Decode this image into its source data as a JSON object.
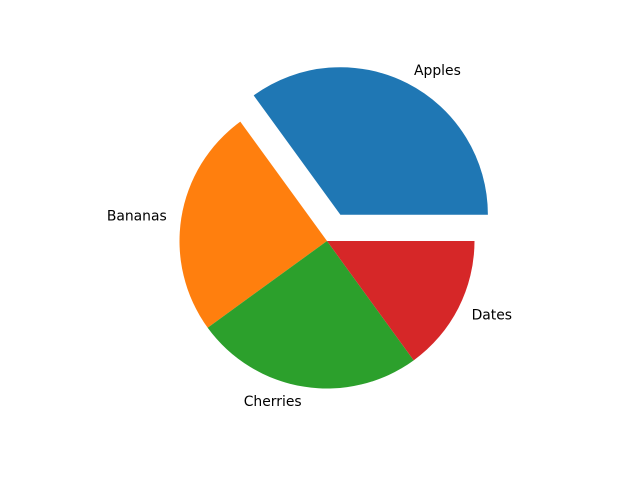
{
  "chart_data": {
    "type": "pie",
    "labels": [
      "Apples",
      "Bananas",
      "Cherries",
      "Dates"
    ],
    "values": [
      35,
      25,
      25,
      15
    ],
    "unit": "percent-of-whole",
    "colors": [
      "#1f77b4",
      "#ff7f0e",
      "#2ca02c",
      "#d62728"
    ],
    "explode": [
      0.2,
      0,
      0,
      0
    ],
    "start_angle": 0,
    "direction": "counterclockwise",
    "label_distance": 1.1,
    "legend": "none",
    "background": "#ffffff",
    "label_color": "#000000"
  }
}
